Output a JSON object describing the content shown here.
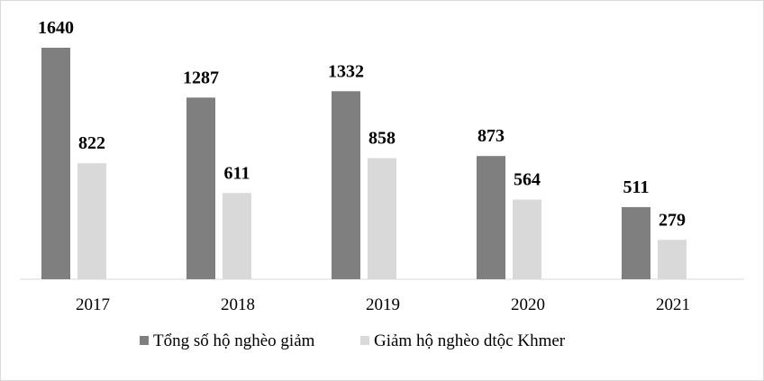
{
  "chart_data": {
    "type": "bar",
    "categories": [
      "2017",
      "2018",
      "2019",
      "2020",
      "2021"
    ],
    "series": [
      {
        "name": "Tổng số hộ nghèo giảm",
        "color": "#7f7f7f",
        "values": [
          1640,
          1287,
          1332,
          873,
          511
        ]
      },
      {
        "name": "Giảm hộ nghèo dtộc Khmer",
        "color": "#d9d9d9",
        "values": [
          822,
          611,
          858,
          564,
          279
        ]
      }
    ],
    "legend": "bottom"
  }
}
